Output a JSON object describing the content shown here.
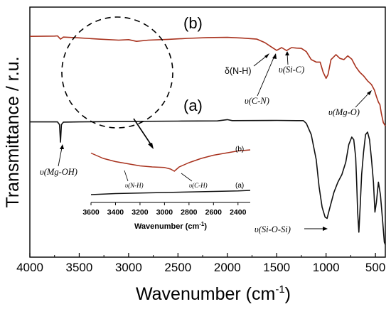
{
  "chart_data": {
    "type": "line",
    "xlabel": "Wavenumber (cm",
    "xlabel_sup": "-1",
    "xlabel_end": ")",
    "ylabel": "Transmittance / r.u.",
    "xlim": [
      4000,
      400
    ],
    "x_reversed": true,
    "xticks": [
      "4000",
      "3500",
      "3000",
      "2500",
      "2000",
      "1500",
      "1000",
      "500"
    ],
    "xtick_values": [
      4000,
      3500,
      3000,
      2500,
      2000,
      1500,
      1000,
      500
    ],
    "y_ticks_shown": false,
    "series": [
      {
        "name": "(b)",
        "color": "#a8321e",
        "points": [
          [
            4000,
            0.883
          ],
          [
            3750,
            0.884
          ],
          [
            3720,
            0.885
          ],
          [
            3690,
            0.872
          ],
          [
            3660,
            0.88
          ],
          [
            3500,
            0.877
          ],
          [
            3300,
            0.872
          ],
          [
            3100,
            0.868
          ],
          [
            3000,
            0.87
          ],
          [
            2920,
            0.863
          ],
          [
            2800,
            0.868
          ],
          [
            2600,
            0.871
          ],
          [
            2400,
            0.875
          ],
          [
            2200,
            0.878
          ],
          [
            2000,
            0.879
          ],
          [
            1850,
            0.876
          ],
          [
            1700,
            0.872
          ],
          [
            1620,
            0.858
          ],
          [
            1560,
            0.842
          ],
          [
            1500,
            0.827
          ],
          [
            1450,
            0.838
          ],
          [
            1400,
            0.826
          ],
          [
            1350,
            0.838
          ],
          [
            1300,
            0.836
          ],
          [
            1250,
            0.835
          ],
          [
            1200,
            0.822
          ],
          [
            1150,
            0.79
          ],
          [
            1100,
            0.78
          ],
          [
            1060,
            0.78
          ],
          [
            1030,
            0.74
          ],
          [
            1000,
            0.715
          ],
          [
            980,
            0.73
          ],
          [
            950,
            0.79
          ],
          [
            900,
            0.81
          ],
          [
            860,
            0.795
          ],
          [
            820,
            0.79
          ],
          [
            780,
            0.805
          ],
          [
            740,
            0.792
          ],
          [
            700,
            0.762
          ],
          [
            660,
            0.74
          ],
          [
            620,
            0.725
          ],
          [
            580,
            0.705
          ],
          [
            540,
            0.69
          ],
          [
            510,
            0.668
          ],
          [
            490,
            0.642
          ],
          [
            470,
            0.62
          ],
          [
            455,
            0.61
          ],
          [
            440,
            0.575
          ],
          [
            420,
            0.538
          ],
          [
            400,
            0.525
          ]
        ]
      },
      {
        "name": "(a)",
        "color": "#111111",
        "points": [
          [
            4000,
            0.541
          ],
          [
            3800,
            0.541
          ],
          [
            3720,
            0.541
          ],
          [
            3700,
            0.53
          ],
          [
            3690,
            0.46
          ],
          [
            3680,
            0.53
          ],
          [
            3660,
            0.54
          ],
          [
            3500,
            0.541
          ],
          [
            3000,
            0.543
          ],
          [
            2500,
            0.544
          ],
          [
            2100,
            0.545
          ],
          [
            2000,
            0.55
          ],
          [
            1950,
            0.546
          ],
          [
            1500,
            0.547
          ],
          [
            1300,
            0.546
          ],
          [
            1230,
            0.546
          ],
          [
            1200,
            0.535
          ],
          [
            1150,
            0.49
          ],
          [
            1100,
            0.39
          ],
          [
            1070,
            0.28
          ],
          [
            1040,
            0.2
          ],
          [
            1010,
            0.16
          ],
          [
            990,
            0.155
          ],
          [
            960,
            0.2
          ],
          [
            920,
            0.26
          ],
          [
            880,
            0.3
          ],
          [
            840,
            0.33
          ],
          [
            800,
            0.38
          ],
          [
            770,
            0.45
          ],
          [
            740,
            0.48
          ],
          [
            720,
            0.47
          ],
          [
            700,
            0.4
          ],
          [
            690,
            0.3
          ],
          [
            680,
            0.18
          ],
          [
            668,
            0.1
          ],
          [
            655,
            0.2
          ],
          [
            640,
            0.33
          ],
          [
            620,
            0.42
          ],
          [
            600,
            0.49
          ],
          [
            580,
            0.5
          ],
          [
            560,
            0.47
          ],
          [
            540,
            0.39
          ],
          [
            520,
            0.3
          ],
          [
            505,
            0.18
          ],
          [
            490,
            0.22
          ],
          [
            470,
            0.3
          ],
          [
            450,
            0.25
          ],
          [
            430,
            0.16
          ],
          [
            410,
            0.06
          ],
          [
            400,
            0.05
          ]
        ]
      }
    ],
    "labels": {
      "b": "(b)",
      "a": "(a)",
      "dNH": "δ(N-H)",
      "vSiC": "υ(Si-C)",
      "vCN": "υ(C-N)",
      "vMgO": "υ(Mg-O)",
      "vMgOH": "υ(Mg-OH)",
      "vSiOSi": "υ(Si-O-Si)"
    },
    "inset": {
      "xlim": [
        3600,
        2300
      ],
      "x_reversed": true,
      "xlabel": "Wavenumber (cm",
      "xlabel_sup": "-1",
      "xlabel_end": ")",
      "xticks": [
        "3600",
        "3400",
        "3200",
        "3000",
        "2800",
        "2600",
        "2400"
      ],
      "xtick_values": [
        3600,
        3400,
        3200,
        3000,
        2800,
        2600,
        2400
      ],
      "labels": {
        "b": "(b)",
        "a": "(a)",
        "vNH": "υ(N-H)",
        "vCH": "υ(C-H)"
      },
      "series": [
        {
          "name": "(b)",
          "color": "#a8321e",
          "points": [
            [
              3600,
              0.86
            ],
            [
              3500,
              0.76
            ],
            [
              3400,
              0.7
            ],
            [
              3300,
              0.66
            ],
            [
              3200,
              0.62
            ],
            [
              3100,
              0.6
            ],
            [
              3000,
              0.59
            ],
            [
              2950,
              0.56
            ],
            [
              2920,
              0.52
            ],
            [
              2880,
              0.6
            ],
            [
              2800,
              0.68
            ],
            [
              2700,
              0.76
            ],
            [
              2600,
              0.82
            ],
            [
              2500,
              0.86
            ],
            [
              2400,
              0.9
            ],
            [
              2300,
              0.92
            ]
          ]
        },
        {
          "name": "(a)",
          "color": "#111111",
          "points": [
            [
              3600,
              0.08
            ],
            [
              3400,
              0.1
            ],
            [
              3200,
              0.11
            ],
            [
              3000,
              0.12
            ],
            [
              2800,
              0.13
            ],
            [
              2600,
              0.14
            ],
            [
              2400,
              0.15
            ],
            [
              2300,
              0.16
            ]
          ]
        }
      ]
    }
  }
}
